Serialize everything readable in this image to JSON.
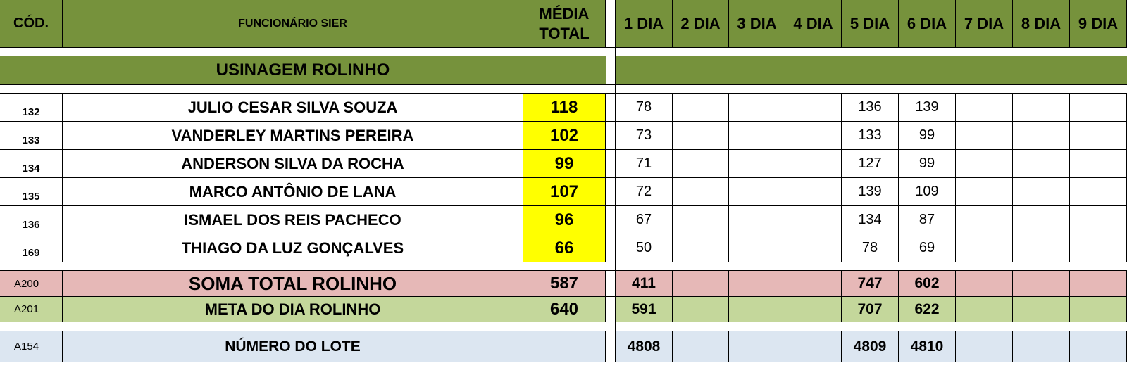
{
  "colors": {
    "header_green": "#76923c",
    "highlight_yellow": "#ffff00",
    "sum_red": "#e6b8b7",
    "goal_green": "#c4d79b",
    "lot_blue": "#dce6f1"
  },
  "header": {
    "cod": "CÓD.",
    "funcionario": "FUNCIONÁRIO SIER",
    "media_line1": "MÉDIA",
    "media_line2": "TOTAL",
    "days": [
      "1 DIA",
      "2 DIA",
      "3 DIA",
      "4 DIA",
      "5 DIA",
      "6 DIA",
      "7 DIA",
      "8 DIA",
      "9 DIA"
    ]
  },
  "section": {
    "title": "USINAGEM ROLINHO"
  },
  "employees": [
    {
      "cod": "132",
      "name": "JULIO CESAR SILVA SOUZA",
      "media": "118",
      "days": [
        "78",
        "",
        "",
        "",
        "136",
        "139",
        "",
        "",
        ""
      ]
    },
    {
      "cod": "133",
      "name": "VANDERLEY MARTINS PEREIRA",
      "media": "102",
      "days": [
        "73",
        "",
        "",
        "",
        "133",
        "99",
        "",
        "",
        ""
      ]
    },
    {
      "cod": "134",
      "name": "ANDERSON SILVA DA ROCHA",
      "media": "99",
      "days": [
        "71",
        "",
        "",
        "",
        "127",
        "99",
        "",
        "",
        ""
      ]
    },
    {
      "cod": "135",
      "name": "MARCO ANTÔNIO DE LANA",
      "media": "107",
      "days": [
        "72",
        "",
        "",
        "",
        "139",
        "109",
        "",
        "",
        ""
      ]
    },
    {
      "cod": "136",
      "name": "ISMAEL DOS REIS PACHECO",
      "media": "96",
      "days": [
        "67",
        "",
        "",
        "",
        "134",
        "87",
        "",
        "",
        ""
      ]
    },
    {
      "cod": "169",
      "name": "THIAGO DA LUZ GONÇALVES",
      "media": "66",
      "days": [
        "50",
        "",
        "",
        "",
        "78",
        "69",
        "",
        "",
        ""
      ]
    }
  ],
  "soma": {
    "cod": "A200",
    "label": "SOMA TOTAL ROLINHO",
    "media": "587",
    "days": [
      "411",
      "",
      "",
      "",
      "747",
      "602",
      "",
      "",
      ""
    ]
  },
  "meta": {
    "cod": "A201",
    "label": "META DO DIA ROLINHO",
    "media": "640",
    "days": [
      "591",
      "",
      "",
      "",
      "707",
      "622",
      "",
      "",
      ""
    ]
  },
  "lote": {
    "cod": "A154",
    "label": "NÚMERO DO LOTE",
    "days": [
      "4808",
      "",
      "",
      "",
      "4809",
      "4810",
      "",
      "",
      ""
    ]
  }
}
